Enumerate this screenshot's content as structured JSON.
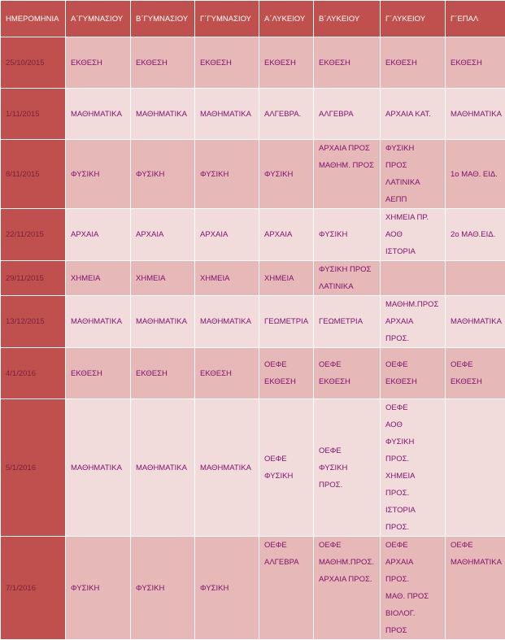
{
  "headers": [
    "ΗΜΕΡΟΜΗΝΙΑ",
    "Α΄ΓΥΜΝΑΣΙΟΥ",
    "Β΄ΓΥΜΝΑΣΙΟΥ",
    "Γ΄ΓΥΜΝΑΣΙΟΥ",
    "Α΄ΛΥΚΕΙΟΥ",
    "Β΄ΛΥΚΕΙΟΥ",
    "Γ΄ΛΥΚΕΙΟΥ",
    "Γ΄ΕΠΑΛ"
  ],
  "rows": [
    {
      "date": "25/10/2015",
      "cells": [
        [
          "ΕΚΘΕΣΗ"
        ],
        [
          "ΕΚΘΕΣΗ"
        ],
        [
          "ΕΚΘΕΣΗ"
        ],
        [
          "ΕΚΘΕΣΗ"
        ],
        [
          "ΕΚΘΕΣΗ"
        ],
        [
          "ΕΚΘΕΣΗ"
        ],
        [
          "ΕΚΘΕΣΗ"
        ]
      ]
    },
    {
      "date": "1/11/2015",
      "cells": [
        [
          "ΜΑΘΗΜΑΤΙΚΑ"
        ],
        [
          "ΜΑΘΗΜΑΤΙΚΑ"
        ],
        [
          "ΜΑΘΗΜΑΤΙΚΑ"
        ],
        [
          "ΑΛΓΕΒΡΑ."
        ],
        [
          "ΑΛΓΕΒΡΑ"
        ],
        [
          "ΑΡΧΑΙΑ ΚΑΤ."
        ],
        [
          "ΜΑΘΗΜΑΤΙΚΑ"
        ]
      ]
    },
    {
      "date": "8/11/2015",
      "cells": [
        [
          "ΦΥΣΙΚΗ"
        ],
        [
          "ΦΥΣΙΚΗ"
        ],
        [
          "ΦΥΣΙΚΗ"
        ],
        [
          "ΦΥΣΙΚΗ"
        ],
        [
          "ΑΡΧΑΙΑ ΠΡΟΣ",
          "ΜΑΘΗΜ. ΠΡΟΣ",
          "",
          ""
        ],
        [
          "ΦΥΣΙΚΗ",
          "ΠΡΟΣ",
          "ΛΑΤΙΝΙΚΑ",
          "ΑΕΠΠ"
        ],
        [
          "1ο ΜΑΘ.  ΕΙΔ."
        ]
      ]
    },
    {
      "date": "22/11/2015",
      "cells": [
        [
          "ΑΡΧΑΙΑ"
        ],
        [
          "ΑΡΧΑΙΑ"
        ],
        [
          "ΑΡΧΑΙΑ"
        ],
        [
          "ΑΡΧΑΙΑ"
        ],
        [
          "ΦΥΣΙΚΗ"
        ],
        [
          "ΧΗΜΕΙΑ ΠΡ.",
          "ΑΟΘ",
          "ΙΣΤΟΡΙΑ"
        ],
        [
          "2ο ΜΑΘ.ΕΙΔ."
        ]
      ]
    },
    {
      "date": "29/11/2015",
      "cells": [
        [
          "ΧΗΜΕΙΑ"
        ],
        [
          "ΧΗΜΕΙΑ"
        ],
        [
          "ΧΗΜΕΙΑ"
        ],
        [
          "ΧΗΜΕΙΑ"
        ],
        [
          "ΦΥΣΙΚΗ ΠΡΟΣ",
          "ΛΑΤΙΝΙΚΑ"
        ],
        [],
        []
      ]
    },
    {
      "date": "13/12/2015",
      "cells": [
        [
          "ΜΑΘΗΜΑΤΙΚΑ"
        ],
        [
          "ΜΑΘΗΜΑΤΙΚΑ"
        ],
        [
          "ΜΑΘΗΜΑΤΙΚΑ"
        ],
        [
          "ΓΕΩΜΕΤΡΙΑ"
        ],
        [
          "ΓΕΩΜΕΤΡΙΑ"
        ],
        [
          "ΜΑΘΗΜ.ΠΡΟΣ",
          "ΑΡΧΑΙΑ",
          "ΠΡΟΣ."
        ],
        [
          "ΜΑΘΗΜΑΤΙΚΑ"
        ]
      ]
    },
    {
      "date": "4/1/2016",
      "cells": [
        [
          "ΕΚΘΕΣΗ"
        ],
        [
          "ΕΚΘΕΣΗ"
        ],
        [
          "ΕΚΘΕΣΗ"
        ],
        [
          "ΟΕΦΕ",
          "ΕΚΘΕΣΗ"
        ],
        [
          "ΟΕΦΕ",
          "ΕΚΘΕΣΗ"
        ],
        [
          "ΟΕΦΕ",
          "ΕΚΘΕΣΗ"
        ],
        [
          "ΟΕΦΕ",
          "ΕΚΘΕΣΗ"
        ]
      ]
    },
    {
      "date": "5/1/2016",
      "cells": [
        [
          "ΜΑΘΗΜΑΤΙΚΑ"
        ],
        [
          "ΜΑΘΗΜΑΤΙΚΑ"
        ],
        [
          "ΜΑΘΗΜΑΤΙΚΑ"
        ],
        [
          "ΟΕΦΕ",
          "ΦΥΣΙΚΗ"
        ],
        [
          "ΟΕΦΕ",
          "ΦΥΣΙΚΗ",
          "ΠΡΟΣ."
        ],
        [
          "ΟΕΦΕ",
          "ΑΟΘ",
          "ΦΥΣΙΚΗ",
          "ΠΡΟΣ.",
          "ΧΗΜΕΙΑ",
          "ΠΡΟΣ.",
          "ΙΣΤΟΡΙΑ",
          "ΠΡΟΣ."
        ],
        []
      ]
    },
    {
      "date": "7/1/2016",
      "cells": [
        [
          "ΦΥΣΙΚΗ"
        ],
        [
          "ΦΥΣΙΚΗ"
        ],
        [
          "ΦΥΣΙΚΗ"
        ],
        [
          "ΟΕΦΕ",
          "ΑΛΓΕΒΡΑ",
          "",
          "",
          "",
          ""
        ],
        [
          "ΟΕΦΕ",
          "ΜΑΘΗΜ.ΠΡΟΣ.",
          "ΑΡΧΑΙΑ ΠΡΟΣ.",
          "",
          "",
          ""
        ],
        [
          "ΟΕΦΕ",
          "ΑΡΧΑΙΑ",
          "ΠΡΟΣ.",
          "ΜΑΘ. ΠΡΟΣ",
          "ΒΙΟΛΟΓ.",
          "ΠΡΟΣ"
        ],
        [
          "ΟΕΦΕ",
          "ΜΑΘΗΜΑΤΙΚΑ",
          "",
          "",
          "",
          ""
        ]
      ]
    }
  ],
  "colors": {
    "header": "#c0504d",
    "odd_row": "#e6b8b7",
    "even_row": "#f2dcdb",
    "text": "#7f0f6e"
  }
}
